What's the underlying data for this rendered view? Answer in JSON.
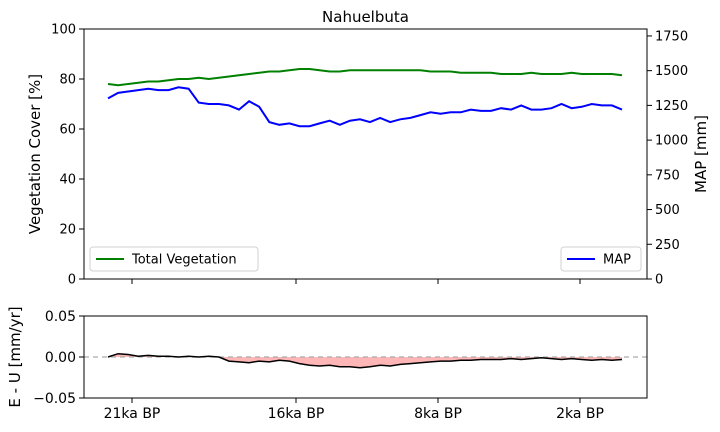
{
  "chart_data": [
    {
      "type": "line",
      "title": "Nahuelbuta",
      "ylabel_left": "Vegetation Cover [%]",
      "ylabel_right": "MAP [mm]",
      "ylim_left": [
        0,
        100
      ],
      "ylim_right": [
        0,
        1800
      ],
      "yticks_left": [
        "0",
        "20",
        "40",
        "60",
        "80",
        "100"
      ],
      "yticks_right": [
        "0",
        "250",
        "500",
        "750",
        "1000",
        "1250",
        "1500",
        "1750"
      ],
      "x_ticks": [
        "21ka BP",
        "16ka BP",
        "8ka BP",
        "2ka BP"
      ],
      "x_order": "time before present, decreasing left to right",
      "series": [
        {
          "name": "Total Vegetation",
          "axis": "left",
          "color": "#008000",
          "legend_position": "lower-left",
          "values": [
            78,
            77.5,
            78,
            78.5,
            79,
            79,
            79.5,
            80,
            80,
            80.5,
            80,
            80.5,
            81,
            81.5,
            82,
            82.5,
            83,
            83,
            83.5,
            84,
            84,
            83.5,
            83,
            83,
            83.5,
            83.5,
            83.5,
            83.5,
            83.5,
            83.5,
            83.5,
            83.5,
            83,
            83,
            83,
            82.5,
            82.5,
            82.5,
            82.5,
            82,
            82,
            82,
            82.5,
            82,
            82,
            82,
            82.5,
            82,
            82,
            82,
            82,
            81.5
          ]
        },
        {
          "name": "MAP",
          "axis": "right",
          "color": "#0000ff",
          "legend_position": "lower-right",
          "values": [
            1300,
            1340,
            1350,
            1360,
            1370,
            1360,
            1360,
            1380,
            1370,
            1270,
            1260,
            1260,
            1250,
            1220,
            1280,
            1240,
            1130,
            1110,
            1120,
            1100,
            1100,
            1120,
            1140,
            1110,
            1140,
            1150,
            1130,
            1160,
            1130,
            1150,
            1160,
            1180,
            1200,
            1190,
            1200,
            1200,
            1220,
            1210,
            1210,
            1230,
            1220,
            1250,
            1220,
            1220,
            1230,
            1260,
            1230,
            1240,
            1260,
            1250,
            1250,
            1220
          ]
        }
      ]
    },
    {
      "type": "area",
      "ylabel": "E - U [mm/yr]",
      "ylim": [
        -0.05,
        0.05
      ],
      "yticks": [
        "−0.05",
        "0.00",
        "0.05"
      ],
      "x_ticks": [
        "21ka BP",
        "16ka BP",
        "8ka BP",
        "2ka BP"
      ],
      "reference_line": 0,
      "fill_color": "#ffb6b6",
      "line_color": "#000000",
      "values": [
        0.0,
        0.004,
        0.003,
        0.001,
        0.002,
        0.001,
        0.001,
        0.0,
        0.001,
        0.0,
        0.001,
        0.0,
        -0.005,
        -0.006,
        -0.007,
        -0.005,
        -0.006,
        -0.004,
        -0.005,
        -0.008,
        -0.01,
        -0.011,
        -0.01,
        -0.012,
        -0.012,
        -0.013,
        -0.012,
        -0.01,
        -0.011,
        -0.009,
        -0.008,
        -0.007,
        -0.006,
        -0.005,
        -0.005,
        -0.004,
        -0.004,
        -0.003,
        -0.003,
        -0.003,
        -0.002,
        -0.003,
        -0.002,
        -0.001,
        -0.002,
        -0.003,
        -0.002,
        -0.003,
        -0.004,
        -0.003,
        -0.004,
        -0.003
      ]
    }
  ]
}
